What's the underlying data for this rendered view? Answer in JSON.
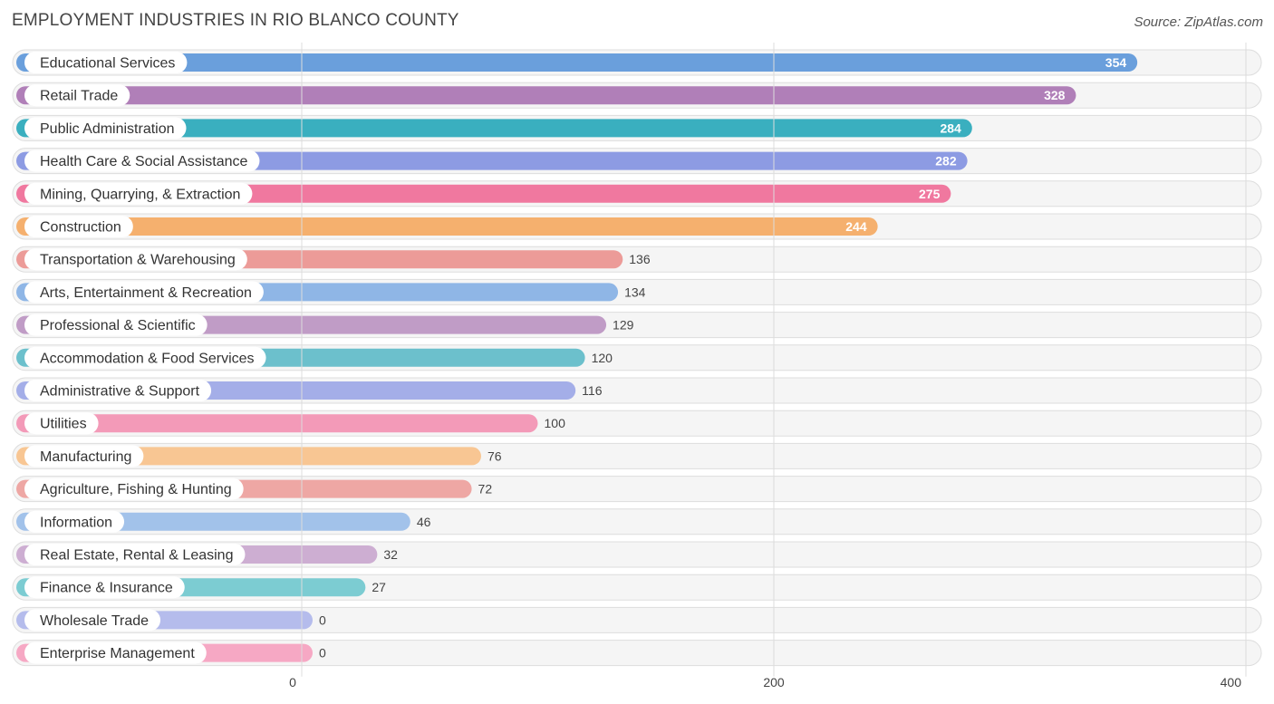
{
  "chart_data": {
    "type": "bar",
    "orientation": "horizontal",
    "title": "EMPLOYMENT INDUSTRIES IN RIO BLANCO COUNTY",
    "source": "Source: ZipAtlas.com",
    "categories": [
      "Educational Services",
      "Retail Trade",
      "Public Administration",
      "Health Care & Social Assistance",
      "Mining, Quarrying, & Extraction",
      "Construction",
      "Transportation & Warehousing",
      "Arts, Entertainment & Recreation",
      "Professional & Scientific",
      "Accommodation & Food Services",
      "Administrative & Support",
      "Utilities",
      "Manufacturing",
      "Agriculture, Fishing & Hunting",
      "Information",
      "Real Estate, Rental & Leasing",
      "Finance & Insurance",
      "Wholesale Trade",
      "Enterprise Management"
    ],
    "values": [
      354,
      328,
      284,
      282,
      275,
      244,
      136,
      134,
      129,
      120,
      116,
      100,
      76,
      72,
      46,
      32,
      27,
      0,
      0
    ],
    "value_labels": [
      "354",
      "328",
      "284",
      "282",
      "275",
      "244",
      "136",
      "134",
      "129",
      "120",
      "116",
      "100",
      "76",
      "72",
      "46",
      "32",
      "27",
      "0",
      "0"
    ],
    "colors": [
      "#6a9fdc",
      "#b07fb8",
      "#3aafbf",
      "#8d9be3",
      "#f0789f",
      "#f5b06e",
      "#ec9b98",
      "#8fb6e6",
      "#c09cc6",
      "#6cc0cc",
      "#a4aee8",
      "#f39ab8",
      "#f8c693",
      "#eea7a4",
      "#a2c2ea",
      "#cdaed2",
      "#7cccd2",
      "#b5bcec",
      "#f6a8c4"
    ],
    "xlim": [
      0,
      400
    ],
    "xticks": [
      0,
      200,
      400
    ],
    "xtick_labels": [
      "0",
      "200",
      "400"
    ],
    "xlabel": "",
    "ylabel": "",
    "grid": true
  }
}
